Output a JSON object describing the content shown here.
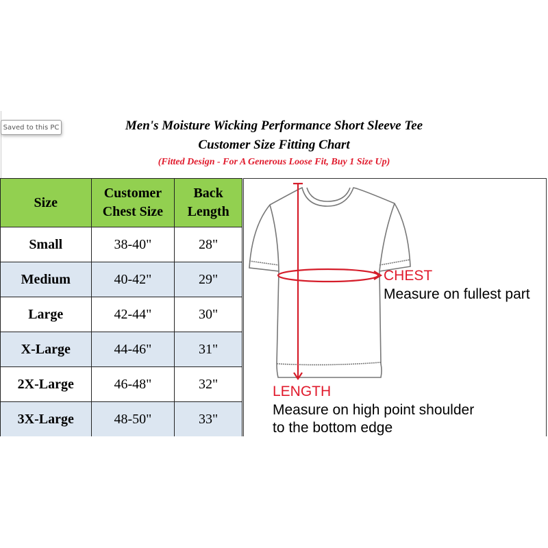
{
  "badge": {
    "saved_label": "Saved to this PC"
  },
  "header": {
    "title": "Men's Moisture Wicking Performance Short Sleeve Tee",
    "subtitle": "Customer Size Fitting Chart",
    "note": "(Fitted Design - For A Generous Loose Fit, Buy 1 Size Up)"
  },
  "table": {
    "columns": [
      "Size",
      "Customer Chest Size",
      "Back Length"
    ],
    "rows": [
      [
        "Small",
        "38-40\"",
        "28\""
      ],
      [
        "Medium",
        "40-42\"",
        "29\""
      ],
      [
        "Large",
        "42-44\"",
        "30\""
      ],
      [
        "X-Large",
        "44-46\"",
        "31\""
      ],
      [
        "2X-Large",
        "46-48\"",
        "32\""
      ],
      [
        "3X-Large",
        "48-50\"",
        "33\""
      ]
    ]
  },
  "diagram": {
    "chest_label": "CHEST",
    "chest_desc": "Measure on fullest part",
    "length_label": "LENGTH",
    "length_desc_1": "Measure on high point shoulder",
    "length_desc_2": "to the bottom edge"
  },
  "colors": {
    "header_green": "#92d050",
    "alt_row": "#dce6f1",
    "accent_red": "#e0192b"
  }
}
